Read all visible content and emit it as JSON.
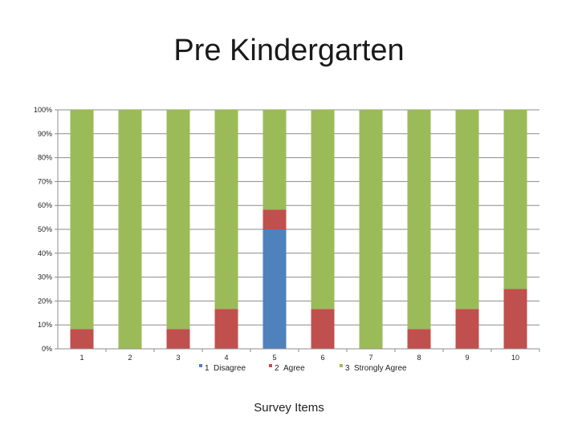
{
  "chart_data": {
    "type": "bar",
    "stacked": true,
    "title": "Pre Kindergarten",
    "xlabel": "Survey Items",
    "ylabel": "",
    "ylim": [
      0,
      100
    ],
    "ytick_labels": [
      "0%",
      "10%",
      "20%",
      "30%",
      "40%",
      "50%",
      "60%",
      "70%",
      "80%",
      "90%",
      "100%"
    ],
    "categories": [
      "1",
      "2",
      "3",
      "4",
      "5",
      "6",
      "7",
      "8",
      "9",
      "10"
    ],
    "series": [
      {
        "name": "1 Disagree",
        "legend_code": "1",
        "legend_label": "Disagree",
        "color": "#4f81bd",
        "values": [
          0,
          0,
          0,
          0,
          50,
          0,
          0,
          0,
          0,
          0
        ]
      },
      {
        "name": "2 Agree",
        "legend_code": "2",
        "legend_label": "Agree",
        "color": "#c0504d",
        "values": [
          8.3,
          0,
          8.3,
          16.7,
          8.3,
          16.7,
          0,
          8.3,
          16.7,
          25
        ]
      },
      {
        "name": "3 Strongly Agree",
        "legend_code": "3",
        "legend_label": "Strongly Agree",
        "color": "#9bbb59",
        "values": [
          91.7,
          100,
          91.7,
          83.3,
          41.7,
          83.3,
          100,
          91.7,
          83.3,
          75
        ]
      }
    ],
    "grid": true,
    "legend_position": "bottom"
  }
}
